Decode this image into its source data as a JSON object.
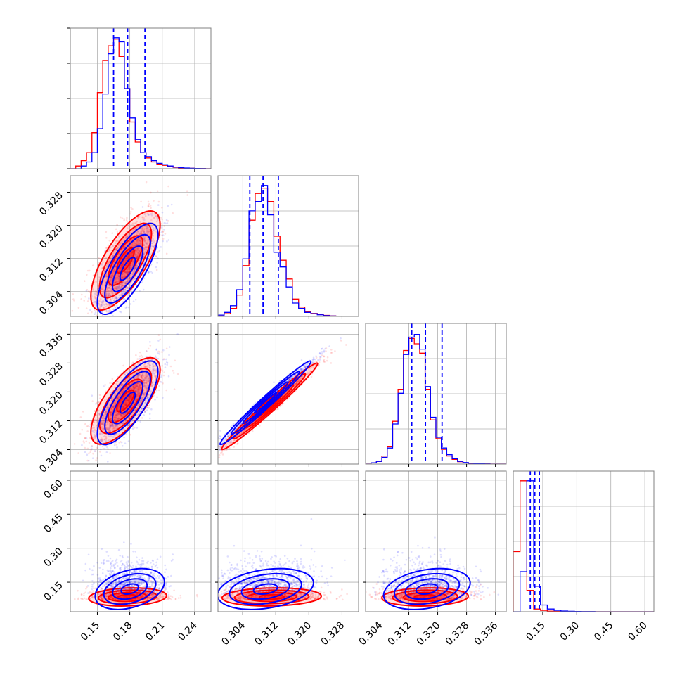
{
  "chart_data": {
    "type": "corner",
    "grid": true,
    "colors": {
      "series_a": "#0000ff",
      "series_b": "#ff0000",
      "quantile_line": "#0000ff"
    },
    "parameters": [
      {
        "id": "p1",
        "range": [
          0.125,
          0.255
        ],
        "ticks": [
          0.15,
          0.18,
          0.21,
          0.24
        ],
        "tick_labels": [
          "0.15",
          "0.18",
          "0.21",
          "0.24"
        ]
      },
      {
        "id": "p2",
        "range": [
          0.298,
          0.332
        ],
        "ticks": [
          0.304,
          0.312,
          0.32,
          0.328
        ],
        "tick_labels": [
          "0.304",
          "0.312",
          "0.320",
          "0.328"
        ]
      },
      {
        "id": "p3",
        "range": [
          0.3,
          0.339
        ],
        "ticks": [
          0.304,
          0.312,
          0.32,
          0.328,
          0.336
        ],
        "tick_labels": [
          "0.304",
          "0.312",
          "0.320",
          "0.328",
          "0.336"
        ]
      },
      {
        "id": "p4",
        "range": [
          0.02,
          0.64
        ],
        "ticks": [
          0.15,
          0.3,
          0.45,
          0.6
        ],
        "tick_labels": [
          "0.15",
          "0.30",
          "0.45",
          "0.60"
        ]
      }
    ],
    "quantiles": [
      [
        0.165,
        0.178,
        0.194
      ],
      [
        0.3057,
        0.3089,
        0.3126
      ],
      [
        0.3128,
        0.3166,
        0.3212
      ],
      [
        0.095,
        0.115,
        0.135
      ]
    ],
    "histograms": [
      {
        "bins": [
          0.125,
          0.13,
          0.135,
          0.14,
          0.145,
          0.15,
          0.155,
          0.16,
          0.165,
          0.17,
          0.175,
          0.18,
          0.185,
          0.19,
          0.195,
          0.2,
          0.205,
          0.21,
          0.215,
          0.22,
          0.225,
          0.23,
          0.235,
          0.24,
          0.245,
          0.25,
          0.255
        ],
        "series_a": [
          0,
          0,
          0.02,
          0.05,
          0.12,
          0.3,
          0.56,
          0.86,
          0.98,
          0.95,
          0.6,
          0.38,
          0.22,
          0.12,
          0.09,
          0.06,
          0.04,
          0.03,
          0.02,
          0.012,
          0.008,
          0.005,
          0.003,
          0.002,
          0.001,
          0
        ],
        "series_b": [
          0,
          0.02,
          0.06,
          0.12,
          0.27,
          0.57,
          0.81,
          0.92,
          0.97,
          0.84,
          0.6,
          0.35,
          0.2,
          0.12,
          0.08,
          0.05,
          0.035,
          0.025,
          0.015,
          0.01,
          0.006,
          0.004,
          0.003,
          0.002,
          0.001,
          0
        ]
      },
      {
        "bins": [
          0.298,
          0.2995,
          0.301,
          0.3025,
          0.304,
          0.3055,
          0.307,
          0.3085,
          0.31,
          0.3115,
          0.313,
          0.3145,
          0.316,
          0.3175,
          0.319,
          0.3205,
          0.322,
          0.3235,
          0.325,
          0.3265,
          0.328,
          0.3295
        ],
        "series_a": [
          0.01,
          0.03,
          0.08,
          0.2,
          0.43,
          0.79,
          0.86,
          0.98,
          0.76,
          0.48,
          0.37,
          0.22,
          0.1,
          0.06,
          0.03,
          0.02,
          0.012,
          0.006,
          0.003,
          0.001,
          0
        ],
        "series_b": [
          0.01,
          0.02,
          0.06,
          0.16,
          0.38,
          0.72,
          0.92,
          0.96,
          0.86,
          0.6,
          0.42,
          0.28,
          0.13,
          0.07,
          0.035,
          0.022,
          0.014,
          0.008,
          0.004,
          0.002,
          0
        ]
      },
      {
        "bins": [
          0.3,
          0.3015,
          0.303,
          0.3045,
          0.306,
          0.3075,
          0.309,
          0.3105,
          0.312,
          0.3135,
          0.315,
          0.3165,
          0.318,
          0.3195,
          0.321,
          0.3225,
          0.324,
          0.3255,
          0.327,
          0.3285,
          0.33,
          0.3315,
          0.333,
          0.3345,
          0.336,
          0.3375,
          0.339
        ],
        "series_a": [
          0,
          0.01,
          0.02,
          0.05,
          0.12,
          0.3,
          0.53,
          0.82,
          0.95,
          0.97,
          0.86,
          0.58,
          0.35,
          0.2,
          0.12,
          0.07,
          0.04,
          0.02,
          0.012,
          0.007,
          0.004,
          0.002,
          0.001,
          0,
          0,
          0
        ],
        "series_b": [
          0,
          0.01,
          0.02,
          0.06,
          0.13,
          0.32,
          0.56,
          0.85,
          0.94,
          0.9,
          0.83,
          0.56,
          0.33,
          0.19,
          0.11,
          0.06,
          0.035,
          0.018,
          0.01,
          0.006,
          0.003,
          0.002,
          0.001,
          0,
          0,
          0
        ]
      },
      {
        "bins": [
          0.02,
          0.05,
          0.08,
          0.11,
          0.14,
          0.17,
          0.2,
          0.23,
          0.26,
          0.29,
          0.32,
          0.35,
          0.38,
          0.41,
          0.44,
          0.47,
          0.5,
          0.53,
          0.56,
          0.59,
          0.62,
          0.65
        ],
        "series_a": [
          0,
          0.3,
          0.98,
          0.19,
          0.05,
          0.02,
          0.01,
          0.005,
          0.003,
          0.002,
          0.001,
          0.001,
          0,
          0,
          0,
          0,
          0,
          0,
          0,
          0,
          0
        ],
        "series_b": [
          0.45,
          0.98,
          0.16,
          0.02,
          0.01,
          0.004,
          0.002,
          0.001,
          0,
          0,
          0,
          0,
          0,
          0,
          0,
          0,
          0,
          0,
          0,
          0,
          0
        ]
      }
    ],
    "scatter_panels": [
      {
        "row": 1,
        "col": 0,
        "series_a": {
          "mean": [
            0.178,
            0.3095
          ],
          "sd": [
            0.014,
            0.0055
          ],
          "corr": 0.75
        },
        "series_b": {
          "mean": [
            0.176,
            0.3115
          ],
          "sd": [
            0.016,
            0.006
          ],
          "corr": 0.72
        }
      },
      {
        "row": 2,
        "col": 0,
        "series_a": {
          "mean": [
            0.178,
            0.317
          ],
          "sd": [
            0.014,
            0.0058
          ],
          "corr": 0.75
        },
        "series_b": {
          "mean": [
            0.176,
            0.3175
          ],
          "sd": [
            0.016,
            0.006
          ],
          "corr": 0.72
        }
      },
      {
        "row": 2,
        "col": 1,
        "series_a": {
          "mean": [
            0.3095,
            0.317
          ],
          "sd": [
            0.0055,
            0.0058
          ],
          "corr": 0.985
        },
        "series_b": {
          "mean": [
            0.3105,
            0.316
          ],
          "sd": [
            0.0058,
            0.006
          ],
          "corr": 0.985
        }
      },
      {
        "row": 3,
        "col": 0,
        "series_a": {
          "mean": [
            0.18,
            0.12
          ],
          "sd": [
            0.016,
            0.045
          ],
          "corr": 0.35
        },
        "series_b": {
          "mean": [
            0.178,
            0.085
          ],
          "sd": [
            0.018,
            0.02
          ],
          "corr": 0.15
        }
      },
      {
        "row": 3,
        "col": 1,
        "series_a": {
          "mean": [
            0.3095,
            0.12
          ],
          "sd": [
            0.0058,
            0.045
          ],
          "corr": 0.3
        },
        "series_b": {
          "mean": [
            0.311,
            0.085
          ],
          "sd": [
            0.006,
            0.02
          ],
          "corr": 0.1
        }
      },
      {
        "row": 3,
        "col": 2,
        "series_a": {
          "mean": [
            0.317,
            0.12
          ],
          "sd": [
            0.006,
            0.045
          ],
          "corr": 0.3
        },
        "series_b": {
          "mean": [
            0.3165,
            0.085
          ],
          "sd": [
            0.006,
            0.02
          ],
          "corr": 0.1
        }
      }
    ],
    "contour_levels_sigma": [
      0.5,
      1.0,
      1.5,
      2.0
    ]
  }
}
